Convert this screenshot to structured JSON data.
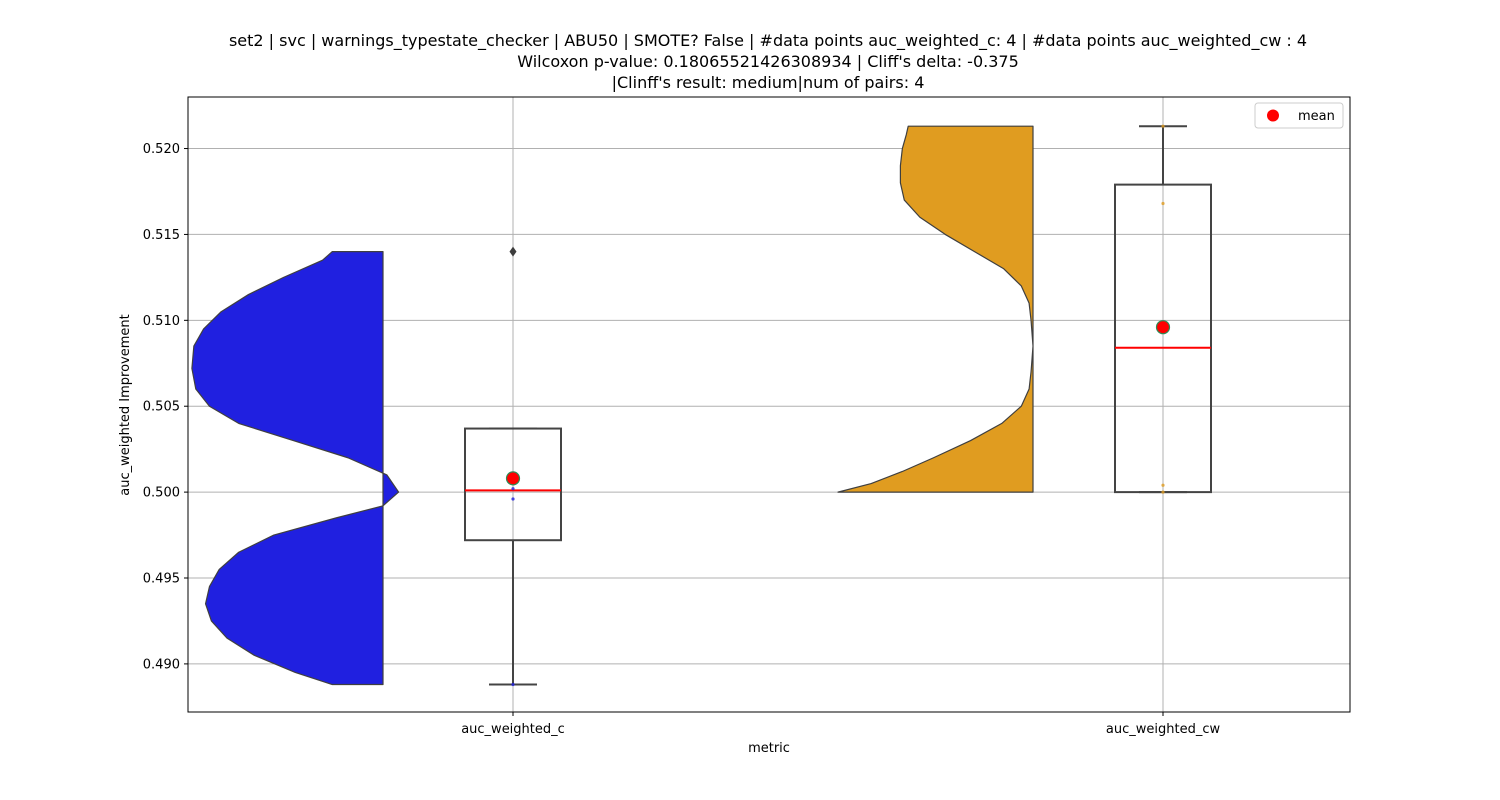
{
  "chart_data": {
    "type": "violin+box",
    "title_lines": [
      "set2 | svc | warnings_typestate_checker | ABU50 | SMOTE? False | #data points auc_weighted_c: 4 | #data points auc_weighted_cw : 4",
      "Wilcoxon p-value: 0.18065521426308934 | Cliff's delta: -0.375",
      "|Clinff's result: medium|num of pairs: 4"
    ],
    "xlabel": "metric",
    "ylabel": "auc_weighted Improvement",
    "categories": [
      "auc_weighted_c",
      "auc_weighted_cw"
    ],
    "ylim": [
      0.4872,
      0.523
    ],
    "yticks": [
      0.49,
      0.495,
      0.5,
      0.505,
      0.51,
      0.515,
      0.52
    ],
    "ytick_labels": [
      "0.490",
      "0.495",
      "0.500",
      "0.505",
      "0.510",
      "0.515",
      "0.520"
    ],
    "grid": true,
    "legend": {
      "position": "top-right",
      "entries": [
        {
          "label": "mean",
          "color": "#ff0000"
        }
      ]
    },
    "series": [
      {
        "category": "auc_weighted_c",
        "violin_color": "#2020e0",
        "violin_side": "left",
        "points": [
          0.4888,
          0.4996,
          0.5002,
          0.514
        ],
        "box": {
          "q1": 0.4972,
          "median": 0.5001,
          "q3": 0.5037,
          "whisker_low": 0.4888,
          "whisker_high": 0.5037
        },
        "outliers": [
          0.514
        ],
        "mean": 0.5008,
        "violin_profile": [
          [
            0.4888,
            0.26
          ],
          [
            0.4895,
            0.45
          ],
          [
            0.4905,
            0.66
          ],
          [
            0.4915,
            0.8
          ],
          [
            0.4925,
            0.88
          ],
          [
            0.4935,
            0.91
          ],
          [
            0.4945,
            0.89
          ],
          [
            0.4955,
            0.84
          ],
          [
            0.4965,
            0.74
          ],
          [
            0.4975,
            0.56
          ],
          [
            0.4985,
            0.24
          ],
          [
            0.4992,
            0.0
          ],
          [
            0.5,
            -0.08
          ],
          [
            0.501,
            -0.02
          ],
          [
            0.502,
            0.18
          ],
          [
            0.503,
            0.46
          ],
          [
            0.504,
            0.74
          ],
          [
            0.505,
            0.89
          ],
          [
            0.506,
            0.96
          ],
          [
            0.5072,
            0.98
          ],
          [
            0.5085,
            0.97
          ],
          [
            0.5095,
            0.92
          ],
          [
            0.5105,
            0.83
          ],
          [
            0.5115,
            0.69
          ],
          [
            0.5125,
            0.51
          ],
          [
            0.5135,
            0.31
          ],
          [
            0.514,
            0.26
          ]
        ]
      },
      {
        "category": "auc_weighted_cw",
        "violin_color": "#e09c20",
        "violin_side": "left",
        "points": [
          0.5,
          0.5004,
          0.5168,
          0.5213
        ],
        "box": {
          "q1": 0.5,
          "median": 0.5084,
          "q3": 0.5179,
          "whisker_low": 0.5,
          "whisker_high": 0.5213
        },
        "outliers": [],
        "mean": 0.5096,
        "violin_profile": [
          [
            0.5,
            1.0
          ],
          [
            0.5005,
            0.83
          ],
          [
            0.5012,
            0.67
          ],
          [
            0.502,
            0.51
          ],
          [
            0.503,
            0.32
          ],
          [
            0.504,
            0.16
          ],
          [
            0.505,
            0.06
          ],
          [
            0.506,
            0.02
          ],
          [
            0.507,
            0.01
          ],
          [
            0.5085,
            0.0
          ],
          [
            0.51,
            0.01
          ],
          [
            0.511,
            0.02
          ],
          [
            0.512,
            0.06
          ],
          [
            0.513,
            0.15
          ],
          [
            0.514,
            0.3
          ],
          [
            0.515,
            0.45
          ],
          [
            0.516,
            0.58
          ],
          [
            0.517,
            0.66
          ],
          [
            0.518,
            0.68
          ],
          [
            0.519,
            0.68
          ],
          [
            0.52,
            0.67
          ],
          [
            0.5208,
            0.65
          ],
          [
            0.5213,
            0.64
          ]
        ]
      }
    ]
  }
}
